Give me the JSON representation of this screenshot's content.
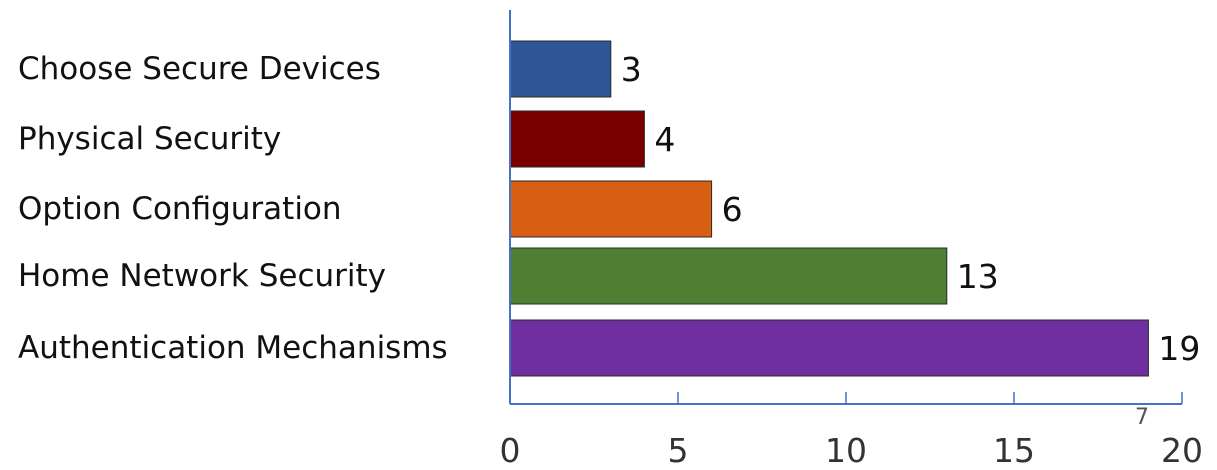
{
  "chart_data": {
    "type": "bar",
    "orientation": "horizontal",
    "title": "",
    "xlabel": "",
    "ylabel": "",
    "categories": [
      "Choose Secure Devices",
      "Physical Security",
      "Option Configuration",
      "Home Network Security",
      "Authentication Mechanisms"
    ],
    "values": [
      3,
      4,
      6,
      13,
      19
    ],
    "colors": [
      "#2e5596",
      "#7a0000",
      "#d65f14",
      "#4f7f32",
      "#6f2f9f"
    ],
    "xlim": [
      0,
      20
    ],
    "xticks": [
      0,
      5,
      10,
      15,
      20
    ],
    "axis_color": "#4472c4",
    "grid": false,
    "legend": "none",
    "data_labels": true,
    "extra_mark": "7"
  }
}
